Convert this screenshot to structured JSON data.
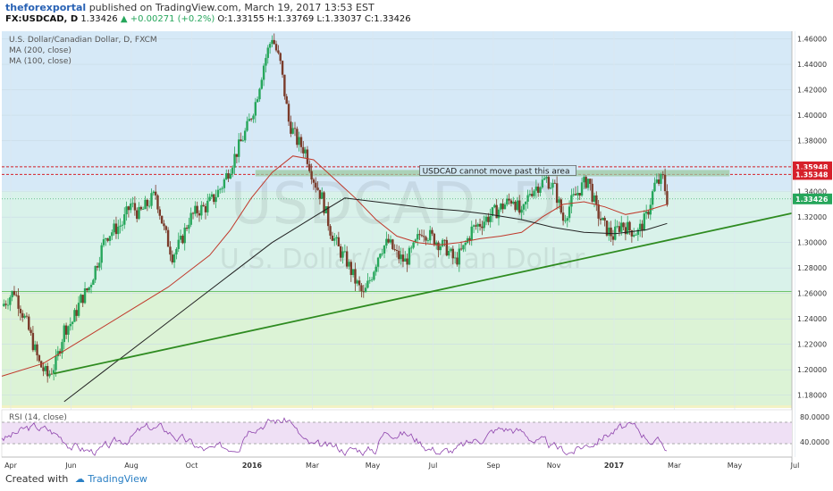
{
  "header": {
    "publisher": "theforexportal",
    "published_text": "published on TradingView.com, March 19, 2017 13:53 EST",
    "symbol": "FX:USDCAD, D",
    "last": "1.33426",
    "change": "▲ +0.00271 (+0.2%)",
    "open": "O:1.33155",
    "high": "H:1.33769",
    "low": "L:1.33037",
    "close": "C:1.33426"
  },
  "legend": {
    "instrument": "U.S. Dollar/Canadian Dollar, D, FXCM",
    "ma200": "MA (200, close)",
    "ma100": "MA (100, close)"
  },
  "watermark": {
    "symbol": "USDCAD, D",
    "name": "U.S. Dollar/Canadian Dollar"
  },
  "annotation": {
    "text": "USDCAD cannot move past this area"
  },
  "price_labels": {
    "upper": "1.35948",
    "lower": "1.35348",
    "last": "1.33426"
  },
  "rsi": {
    "label": "RSI (14, close)",
    "ticks": [
      "80.0000",
      "40.0000"
    ]
  },
  "footer": {
    "created_with": "Created with",
    "brand": "TradingView"
  },
  "colors": {
    "up": "#26a65b",
    "down": "#7a3b2a",
    "ma100": "#c0392b",
    "ma200": "#222222",
    "trendline": "#2e8b20",
    "resistance": "#d6202a",
    "rsi": "#8e44ad"
  },
  "chart_data": {
    "type": "candlestick",
    "y_ticks": [
      "1.46000",
      "1.44000",
      "1.42000",
      "1.40000",
      "1.38000",
      "1.36000",
      "1.34000",
      "1.32000",
      "1.30000",
      "1.28000",
      "1.26000",
      "1.24000",
      "1.22000",
      "1.20000",
      "1.18000"
    ],
    "ylim": [
      1.17,
      1.466
    ],
    "x_ticks": [
      "Apr",
      "Jun",
      "Aug",
      "Oct",
      "2016",
      "Mar",
      "May",
      "Jul",
      "Sep",
      "Nov",
      "2017",
      "Mar",
      "May",
      "Jul"
    ],
    "approx_close_path": [
      [
        0,
        1.25
      ],
      [
        6,
        1.262
      ],
      [
        12,
        1.236
      ],
      [
        18,
        1.205
      ],
      [
        22,
        1.195
      ],
      [
        26,
        1.205
      ],
      [
        30,
        1.232
      ],
      [
        34,
        1.238
      ],
      [
        38,
        1.255
      ],
      [
        42,
        1.265
      ],
      [
        46,
        1.285
      ],
      [
        50,
        1.305
      ],
      [
        54,
        1.31
      ],
      [
        58,
        1.315
      ],
      [
        62,
        1.33
      ],
      [
        66,
        1.322
      ],
      [
        70,
        1.33
      ],
      [
        74,
        1.338
      ],
      [
        78,
        1.31
      ],
      [
        82,
        1.29
      ],
      [
        86,
        1.3
      ],
      [
        90,
        1.318
      ],
      [
        94,
        1.325
      ],
      [
        98,
        1.328
      ],
      [
        102,
        1.335
      ],
      [
        106,
        1.345
      ],
      [
        110,
        1.36
      ],
      [
        114,
        1.375
      ],
      [
        118,
        1.39
      ],
      [
        122,
        1.41
      ],
      [
        126,
        1.44
      ],
      [
        130,
        1.462
      ],
      [
        134,
        1.44
      ],
      [
        138,
        1.395
      ],
      [
        142,
        1.38
      ],
      [
        146,
        1.372
      ],
      [
        150,
        1.35
      ],
      [
        154,
        1.335
      ],
      [
        158,
        1.31
      ],
      [
        162,
        1.295
      ],
      [
        166,
        1.285
      ],
      [
        170,
        1.27
      ],
      [
        174,
        1.258
      ],
      [
        178,
        1.275
      ],
      [
        182,
        1.295
      ],
      [
        186,
        1.3
      ],
      [
        190,
        1.29
      ],
      [
        194,
        1.285
      ],
      [
        198,
        1.295
      ],
      [
        202,
        1.31
      ],
      [
        206,
        1.305
      ],
      [
        210,
        1.3
      ],
      [
        214,
        1.295
      ],
      [
        218,
        1.285
      ],
      [
        222,
        1.295
      ],
      [
        226,
        1.31
      ],
      [
        230,
        1.315
      ],
      [
        234,
        1.32
      ],
      [
        238,
        1.325
      ],
      [
        242,
        1.33
      ],
      [
        246,
        1.335
      ],
      [
        250,
        1.32
      ],
      [
        254,
        1.34
      ],
      [
        258,
        1.345
      ],
      [
        262,
        1.35
      ],
      [
        266,
        1.342
      ],
      [
        270,
        1.318
      ],
      [
        274,
        1.332
      ],
      [
        278,
        1.342
      ],
      [
        282,
        1.35
      ],
      [
        286,
        1.325
      ],
      [
        290,
        1.312
      ],
      [
        294,
        1.305
      ],
      [
        298,
        1.315
      ],
      [
        302,
        1.31
      ],
      [
        306,
        1.308
      ],
      [
        310,
        1.32
      ],
      [
        314,
        1.345
      ],
      [
        318,
        1.35
      ],
      [
        320,
        1.334
      ]
    ],
    "x_domain": [
      0,
      380
    ],
    "ma100": [
      [
        0,
        1.195
      ],
      [
        20,
        1.205
      ],
      [
        40,
        1.225
      ],
      [
        60,
        1.245
      ],
      [
        80,
        1.265
      ],
      [
        100,
        1.29
      ],
      [
        110,
        1.31
      ],
      [
        120,
        1.335
      ],
      [
        130,
        1.355
      ],
      [
        140,
        1.368
      ],
      [
        150,
        1.365
      ],
      [
        160,
        1.35
      ],
      [
        170,
        1.335
      ],
      [
        180,
        1.318
      ],
      [
        190,
        1.305
      ],
      [
        200,
        1.3
      ],
      [
        210,
        1.298
      ],
      [
        220,
        1.3
      ],
      [
        230,
        1.303
      ],
      [
        240,
        1.305
      ],
      [
        250,
        1.308
      ],
      [
        260,
        1.32
      ],
      [
        270,
        1.33
      ],
      [
        280,
        1.332
      ],
      [
        290,
        1.328
      ],
      [
        300,
        1.322
      ],
      [
        310,
        1.325
      ],
      [
        320,
        1.33
      ]
    ],
    "ma200": [
      [
        30,
        1.175
      ],
      [
        50,
        1.2
      ],
      [
        70,
        1.225
      ],
      [
        90,
        1.25
      ],
      [
        110,
        1.275
      ],
      [
        130,
        1.3
      ],
      [
        150,
        1.32
      ],
      [
        165,
        1.335
      ],
      [
        175,
        1.333
      ],
      [
        190,
        1.33
      ],
      [
        205,
        1.327
      ],
      [
        220,
        1.325
      ],
      [
        235,
        1.322
      ],
      [
        250,
        1.318
      ],
      [
        265,
        1.312
      ],
      [
        280,
        1.308
      ],
      [
        295,
        1.307
      ],
      [
        310,
        1.31
      ],
      [
        320,
        1.315
      ]
    ],
    "trendline": [
      [
        25,
        1.197
      ],
      [
        380,
        1.323
      ]
    ],
    "resistance_levels": [
      1.35948,
      1.35348
    ],
    "support_level": 1.2615,
    "resistance_zone": [
      1.352,
      1.357
    ],
    "rsi_ticks": [
      80,
      40
    ],
    "rsi_range": [
      28,
      88
    ]
  }
}
